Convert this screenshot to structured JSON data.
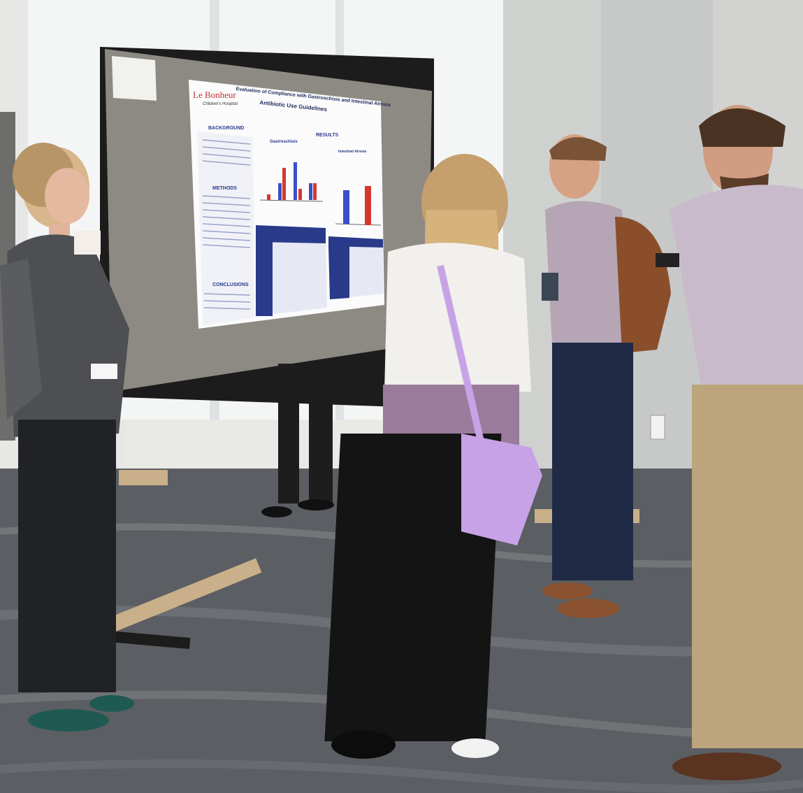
{
  "poster": {
    "logo_main": "Le Bonheur",
    "logo_sub": "Children's Hospital",
    "title_line1": "Evaluation of Compliance with Gastroschisis and Intestinal Atresia",
    "title_line2": "Antibiotic Use Guidelines",
    "headings": {
      "background": "BACKGROUND",
      "methods": "METHODS",
      "conclusions": "CONCLUSIONS",
      "results": "RESULTS",
      "gastroschisis": "Gastroschisis",
      "intestinal_atresia": "Intestinal Atresia"
    }
  },
  "colors": {
    "bar_blue": "#3b4fc8",
    "bar_red": "#d6382e",
    "poster_blue": "#2a3a8a",
    "board_gray": "#8c8a82",
    "floor": "#5b5e62"
  }
}
